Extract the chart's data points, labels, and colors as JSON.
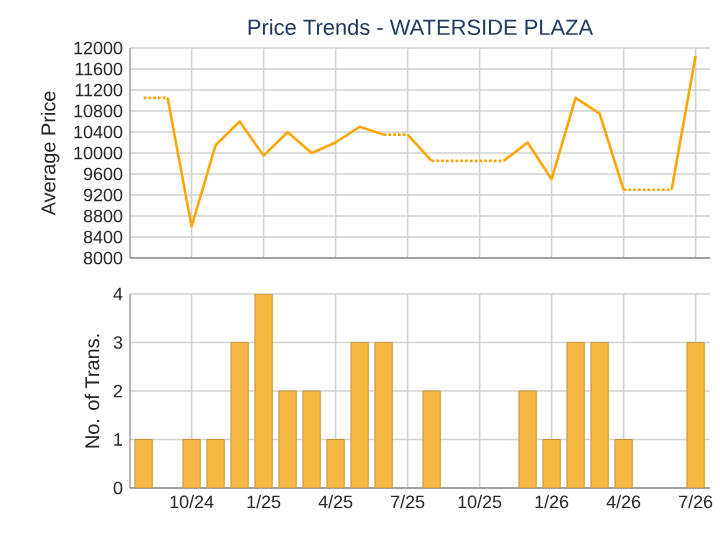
{
  "chart_data": [
    {
      "type": "line",
      "title": "Price Trends - WATERSIDE PLAZA",
      "ylabel": "Average Price",
      "series": [
        {
          "color": "#ffa500",
          "line_style": "dotted",
          "x": [
            "2024-08",
            "2024-09"
          ],
          "values": [
            11050,
            11050
          ]
        },
        {
          "color": "#ffa500",
          "line_style": "solid",
          "x": [
            "2024-09",
            "2024-10",
            "2024-11",
            "2024-12",
            "2025-01",
            "2025-02",
            "2025-03",
            "2025-04",
            "2025-05",
            "2025-06"
          ],
          "values": [
            11050,
            8600,
            10150,
            10600,
            9950,
            10400,
            10000,
            10200,
            10500,
            10350
          ]
        },
        {
          "color": "#ffa500",
          "line_style": "dotted",
          "x": [
            "2025-06",
            "2025-07"
          ],
          "values": [
            10350,
            10350
          ]
        },
        {
          "color": "#ffa500",
          "line_style": "solid",
          "x": [
            "2025-07",
            "2025-08"
          ],
          "values": [
            10350,
            9850
          ]
        },
        {
          "color": "#ffa500",
          "line_style": "dotted",
          "x": [
            "2025-08",
            "2025-11"
          ],
          "values": [
            9850,
            9850
          ]
        },
        {
          "color": "#ffa500",
          "line_style": "solid",
          "x": [
            "2025-11",
            "2025-12",
            "2026-01",
            "2026-02",
            "2026-03",
            "2026-04"
          ],
          "values": [
            9850,
            10200,
            9500,
            11050,
            10750,
            9300
          ]
        },
        {
          "color": "#ffa500",
          "line_style": "dotted",
          "x": [
            "2026-04",
            "2026-06"
          ],
          "values": [
            9300,
            9300
          ]
        },
        {
          "color": "#ffa500",
          "line_style": "solid",
          "x": [
            "2026-06",
            "2026-07"
          ],
          "values": [
            9300,
            11850
          ]
        }
      ],
      "xlim": [
        "2024-07-14",
        "2026-07-19"
      ],
      "xticks": [
        {
          "value": "2024-10",
          "label": null
        },
        {
          "value": "2025-01",
          "label": null
        },
        {
          "value": "2025-04",
          "label": null
        },
        {
          "value": "2025-07",
          "label": null
        },
        {
          "value": "2025-10",
          "label": null
        },
        {
          "value": "2026-01",
          "label": null
        },
        {
          "value": "2026-04",
          "label": null
        },
        {
          "value": "2026-07",
          "label": null
        }
      ],
      "ylim": [
        8000,
        12000
      ],
      "yticks": [
        8000,
        8400,
        8800,
        9200,
        9600,
        10000,
        10400,
        10800,
        11200,
        11600,
        12000
      ],
      "grid": true,
      "tick_labels": "y"
    },
    {
      "type": "bar",
      "ylabel": "No. of Trans.",
      "color": "#f7b844",
      "x": [
        "2024-08",
        "2024-10",
        "2024-11",
        "2024-12",
        "2025-01",
        "2025-02",
        "2025-03",
        "2025-04",
        "2025-05",
        "2025-06",
        "2025-08",
        "2025-12",
        "2026-01",
        "2026-02",
        "2026-03",
        "2026-04",
        "2026-07"
      ],
      "values": [
        1,
        1,
        1,
        3,
        4,
        2,
        2,
        1,
        3,
        3,
        2,
        2,
        1,
        3,
        3,
        1,
        3
      ],
      "xlim": [
        "2024-07-14",
        "2026-07-19"
      ],
      "xticks": [
        {
          "value": "2024-10",
          "label": "10/24"
        },
        {
          "value": "2025-01",
          "label": "1/25"
        },
        {
          "value": "2025-04",
          "label": "4/25"
        },
        {
          "value": "2025-07",
          "label": "7/25"
        },
        {
          "value": "2025-10",
          "label": "10/25"
        },
        {
          "value": "2026-01",
          "label": "1/26"
        },
        {
          "value": "2026-04",
          "label": "4/26"
        },
        {
          "value": "2026-07",
          "label": "7/26"
        }
      ],
      "ylim": [
        0,
        4
      ],
      "yticks": [
        0,
        1,
        2,
        3,
        4
      ],
      "grid": true
    }
  ]
}
